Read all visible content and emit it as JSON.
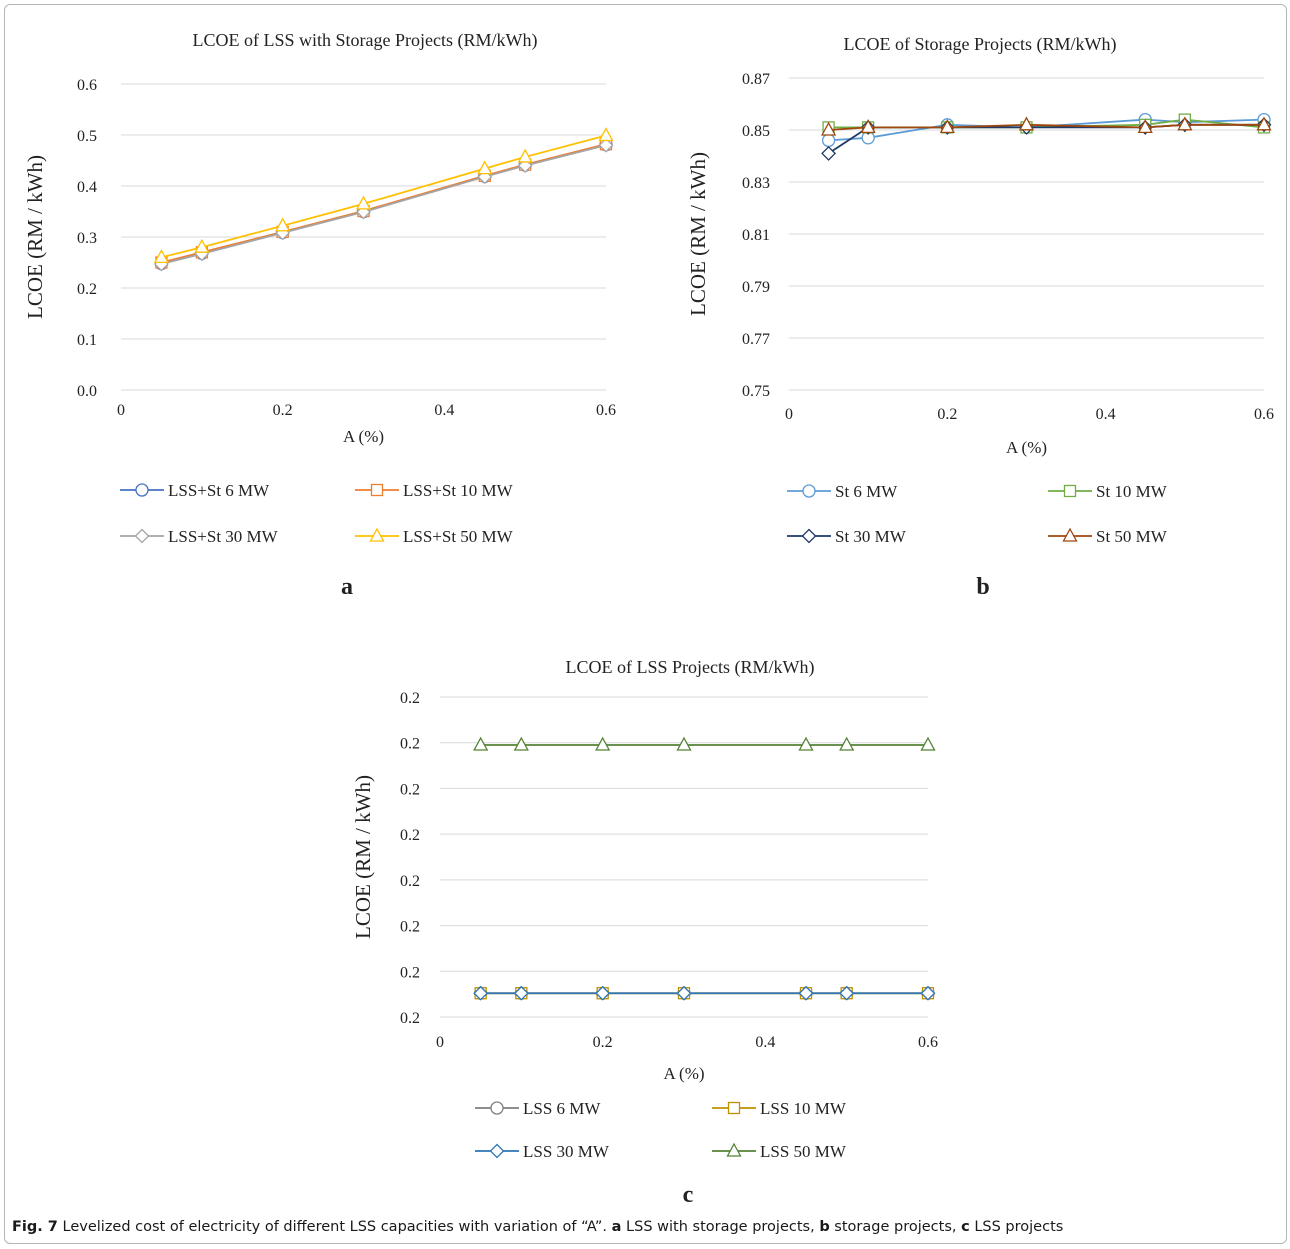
{
  "chart_data": [
    {
      "type": "line",
      "title": "LCOE of LSS with Storage Projects (RM/kWh)",
      "xlabel": "A (%)",
      "ylabel": "LCOE (RM / kWh)",
      "panel_label": "a",
      "xlim": [
        0,
        0.6
      ],
      "ylim": [
        0.0,
        0.6
      ],
      "xticks": [
        "0",
        "0.2",
        "0.4",
        "0.6"
      ],
      "yticks": [
        "0.0",
        "0.1",
        "0.2",
        "0.3",
        "0.4",
        "0.5",
        "0.6"
      ],
      "grid": true,
      "legend_position": "bottom",
      "x": [
        0.05,
        0.1,
        0.2,
        0.3,
        0.45,
        0.5,
        0.6
      ],
      "series": [
        {
          "name": "LSS+St 6 MW",
          "color": "#4472c4",
          "marker": "circle",
          "values": [
            0.248,
            0.268,
            0.309,
            0.35,
            0.419,
            0.441,
            0.481
          ]
        },
        {
          "name": "LSS+St 10 MW",
          "color": "#ed7d31",
          "marker": "square",
          "values": [
            0.25,
            0.27,
            0.31,
            0.351,
            0.42,
            0.442,
            0.482
          ]
        },
        {
          "name": "LSS+St 30 MW",
          "color": "#a5a5a5",
          "marker": "diamond",
          "values": [
            0.247,
            0.267,
            0.308,
            0.349,
            0.418,
            0.44,
            0.48
          ]
        },
        {
          "name": "LSS+St 50 MW",
          "color": "#ffc000",
          "marker": "triangle",
          "values": [
            0.26,
            0.28,
            0.322,
            0.365,
            0.434,
            0.457,
            0.499
          ]
        }
      ]
    },
    {
      "type": "line",
      "title": "LCOE of Storage Projects  (RM/kWh)",
      "xlabel": "A (%)",
      "ylabel": "LCOE (RM / kWh)",
      "panel_label": "b",
      "xlim": [
        0,
        0.6
      ],
      "ylim": [
        0.75,
        0.87
      ],
      "xticks": [
        "0",
        "0.2",
        "0.4",
        "0.6"
      ],
      "yticks": [
        "0.75",
        "0.77",
        "0.79",
        "0.81",
        "0.83",
        "0.85",
        "0.87"
      ],
      "grid": true,
      "legend_position": "bottom",
      "x": [
        0.05,
        0.1,
        0.2,
        0.3,
        0.45,
        0.5,
        0.6
      ],
      "series": [
        {
          "name": "St 6 MW",
          "color": "#5b9bd5",
          "marker": "circle",
          "values": [
            0.846,
            0.847,
            0.852,
            0.851,
            0.854,
            0.853,
            0.854
          ]
        },
        {
          "name": "St 10 MW",
          "color": "#70ad47",
          "marker": "square",
          "values": [
            0.851,
            0.851,
            0.851,
            0.851,
            0.852,
            0.854,
            0.851
          ]
        },
        {
          "name": "St 30 MW",
          "color": "#203864",
          "marker": "diamond",
          "values": [
            0.841,
            0.851,
            0.851,
            0.851,
            0.851,
            0.852,
            0.852
          ]
        },
        {
          "name": "St 50 MW",
          "color": "#9e480e",
          "marker": "triangle",
          "values": [
            0.85,
            0.851,
            0.851,
            0.852,
            0.851,
            0.852,
            0.852
          ]
        }
      ]
    },
    {
      "type": "line",
      "title": "LCOE of LSS Projects  (RM/kWh)",
      "xlabel": "A (%)",
      "ylabel": "LCOE (RM / kWh)",
      "panel_label": "c",
      "xlim": [
        0,
        0.6
      ],
      "ylim": [
        0,
        7
      ],
      "xticks": [
        "0",
        "0.2",
        "0.4",
        "0.6"
      ],
      "yticks": [
        "0.2",
        "0.2",
        "0.2",
        "0.2",
        "0.2",
        "0.2",
        "0.2",
        "0.2"
      ],
      "grid": true,
      "legend_position": "bottom",
      "x": [
        0.05,
        0.1,
        0.2,
        0.3,
        0.45,
        0.5,
        0.6
      ],
      "series": [
        {
          "name": "LSS 6 MW",
          "color": "#7f7f7f",
          "marker": "circle",
          "values": [
            0.52,
            0.52,
            0.52,
            0.52,
            0.52,
            0.52,
            0.52
          ]
        },
        {
          "name": "LSS 10 MW",
          "color": "#bf9000",
          "marker": "square",
          "values": [
            0.52,
            0.52,
            0.52,
            0.52,
            0.52,
            0.52,
            0.52
          ]
        },
        {
          "name": "LSS 30 MW",
          "color": "#2e75b6",
          "marker": "diamond",
          "values": [
            0.52,
            0.52,
            0.52,
            0.52,
            0.52,
            0.52,
            0.52
          ]
        },
        {
          "name": "LSS 50 MW",
          "color": "#548235",
          "marker": "triangle",
          "values": [
            5.95,
            5.95,
            5.95,
            5.95,
            5.95,
            5.95,
            5.95
          ]
        }
      ]
    }
  ],
  "caption": {
    "fig_label": "Fig. 7",
    "text": "  Levelized cost of electricity of different LSS capacities with variation of “A”. ",
    "a_label": "a",
    "a_text": " LSS with storage projects, ",
    "b_label": "b",
    "b_text": " storage projects, ",
    "c_label": "c",
    "c_text": " LSS projects"
  }
}
